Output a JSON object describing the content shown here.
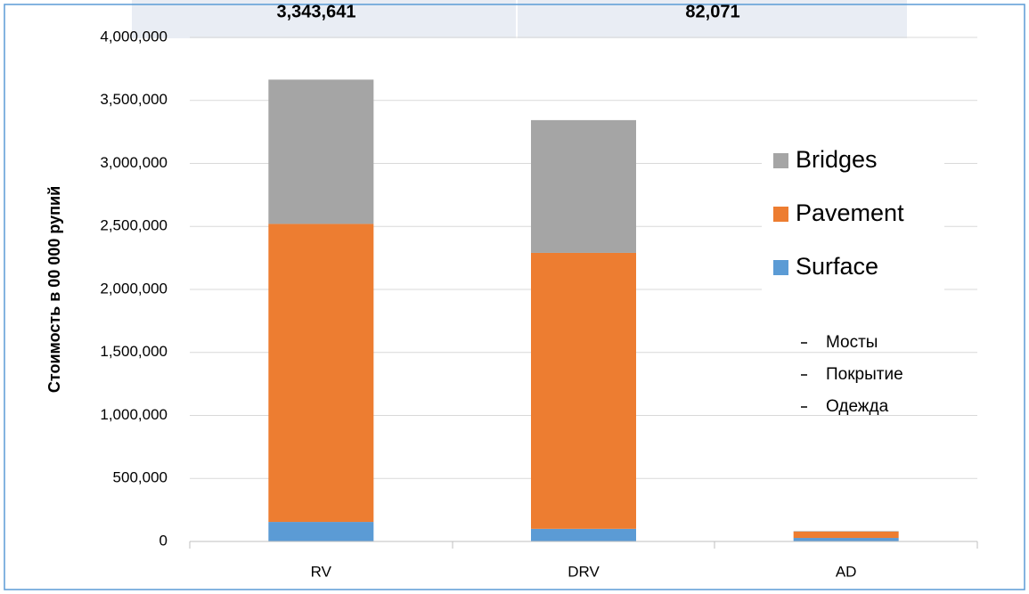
{
  "chart_data": {
    "type": "stacked_bar",
    "header_values": [
      "3,343,641",
      "82,071"
    ],
    "y_axis_label": "Стоимость в 00 000 рупий",
    "categories": [
      "RV",
      "DRV",
      "AD"
    ],
    "series": [
      {
        "name": "Surface",
        "color": "#5b9bd5",
        "values": [
          155000,
          100000,
          28000
        ]
      },
      {
        "name": "Pavement",
        "color": "#ed7d31",
        "values": [
          2365000,
          2190000,
          50000
        ]
      },
      {
        "name": "Bridges",
        "color": "#a5a5a5",
        "values": [
          1145000,
          1053641,
          4071
        ]
      }
    ],
    "ylim": [
      0,
      4000000
    ],
    "yticks": [
      0,
      {
        "value": 500000,
        "label": "500,000"
      },
      {
        "value": 1000000,
        "label": "1,000,000"
      },
      {
        "value": 1500000,
        "label": "1,500,000"
      },
      {
        "value": 2000000,
        "label": "2,000,000"
      },
      {
        "value": 2500000,
        "label": "2,500,000"
      },
      {
        "value": 3000000,
        "label": "3,000,000"
      },
      {
        "value": 3500000,
        "label": "3,500,000"
      },
      {
        "value": 4000000,
        "label": "4,000,000"
      }
    ],
    "grid": true,
    "legend_position": "right",
    "annotations": [
      "Мосты",
      "Покрытие",
      "Одежда"
    ]
  }
}
